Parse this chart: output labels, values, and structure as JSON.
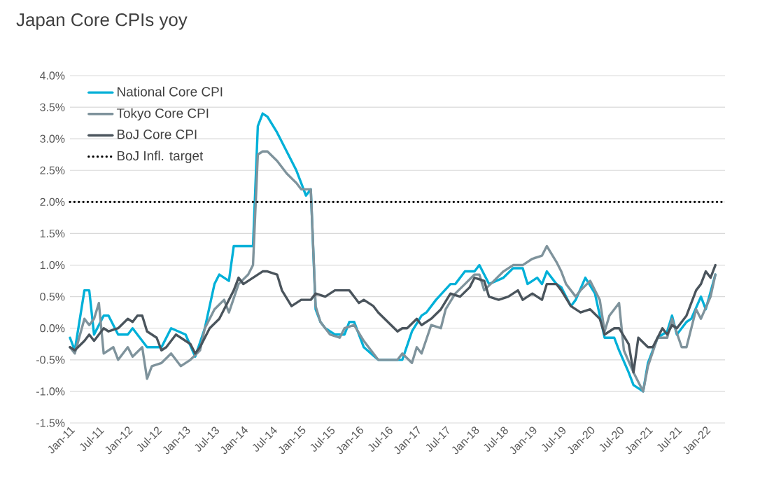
{
  "chart_data": {
    "type": "line",
    "title": "Japan Core CPIs yoy",
    "xlim": [
      "2011-01",
      "2022-05"
    ],
    "xticks": [
      {
        "value": "2011-01",
        "label": "Jan-11"
      },
      {
        "value": "2011-07",
        "label": "Jul-11"
      },
      {
        "value": "2012-01",
        "label": "Jan-12"
      },
      {
        "value": "2012-07",
        "label": "Jul-12"
      },
      {
        "value": "2013-01",
        "label": "Jan-13"
      },
      {
        "value": "2013-07",
        "label": "Jul-13"
      },
      {
        "value": "2014-01",
        "label": "Jan-14"
      },
      {
        "value": "2014-07",
        "label": "Jul-14"
      },
      {
        "value": "2015-01",
        "label": "Jan-15"
      },
      {
        "value": "2015-07",
        "label": "Jul-15"
      },
      {
        "value": "2016-01",
        "label": "Jan-16"
      },
      {
        "value": "2016-07",
        "label": "Jul-16"
      },
      {
        "value": "2017-01",
        "label": "Jan-17"
      },
      {
        "value": "2017-07",
        "label": "Jul-17"
      },
      {
        "value": "2018-01",
        "label": "Jan-18"
      },
      {
        "value": "2018-07",
        "label": "Jul-18"
      },
      {
        "value": "2019-01",
        "label": "Jan-19"
      },
      {
        "value": "2019-07",
        "label": "Jul-19"
      },
      {
        "value": "2020-01",
        "label": "Jan-20"
      },
      {
        "value": "2020-07",
        "label": "Jul-20"
      },
      {
        "value": "2021-01",
        "label": "Jan-21"
      },
      {
        "value": "2021-07",
        "label": "Jul-21"
      },
      {
        "value": "2022-01",
        "label": "Jan-22"
      }
    ],
    "ylim": [
      -1.5,
      4.0
    ],
    "yticks": [
      {
        "value": -1.5,
        "label": "-1.5%"
      },
      {
        "value": -1.0,
        "label": "-1.0%"
      },
      {
        "value": -0.5,
        "label": "-0.5%"
      },
      {
        "value": 0,
        "label": "0.0%"
      },
      {
        "value": 0.5,
        "label": "0.5%"
      },
      {
        "value": 1.0,
        "label": "1.0%"
      },
      {
        "value": 1.5,
        "label": "1.5%"
      },
      {
        "value": 2.0,
        "label": "2.0%"
      },
      {
        "value": 2.5,
        "label": "2.5%"
      },
      {
        "value": 3.0,
        "label": "3.0%"
      },
      {
        "value": 3.5,
        "label": "3.5%"
      },
      {
        "value": 4.0,
        "label": "4.0%"
      }
    ],
    "grid": "y",
    "legend": "top left",
    "marker": "none",
    "line_style": "solid",
    "ref_lines": [
      {
        "axis": "y",
        "value": 2.0,
        "label": "BoJ Infl. target",
        "color": "#000000",
        "line_style": "dotted"
      }
    ],
    "series": [
      {
        "name": "National Core CPI",
        "color": "#00b0d8",
        "x": [
          "2011-01",
          "2011-02",
          "2011-04",
          "2011-05",
          "2011-06",
          "2011-08",
          "2011-09",
          "2011-11",
          "2012-01",
          "2012-02",
          "2012-05",
          "2012-08",
          "2012-10",
          "2013-01",
          "2013-03",
          "2013-05",
          "2013-07",
          "2013-08",
          "2013-10",
          "2013-11",
          "2013-12",
          "2014-03",
          "2014-04",
          "2014-05",
          "2014-06",
          "2014-08",
          "2014-10",
          "2014-12",
          "2015-02",
          "2015-03",
          "2015-04",
          "2015-05",
          "2015-06",
          "2015-08",
          "2015-10",
          "2015-11",
          "2015-12",
          "2016-02",
          "2016-05",
          "2016-08",
          "2016-10",
          "2016-12",
          "2017-02",
          "2017-03",
          "2017-05",
          "2017-08",
          "2017-09",
          "2017-11",
          "2018-01",
          "2018-02",
          "2018-03",
          "2018-04",
          "2018-07",
          "2018-09",
          "2018-11",
          "2018-12",
          "2019-02",
          "2019-03",
          "2019-04",
          "2019-06",
          "2019-07",
          "2019-09",
          "2019-10",
          "2019-12",
          "2020-02",
          "2020-04",
          "2020-06",
          "2020-07",
          "2020-09",
          "2020-10",
          "2020-12",
          "2021-01",
          "2021-03",
          "2021-05",
          "2021-06",
          "2021-07",
          "2021-09",
          "2021-10",
          "2021-12",
          "2022-01",
          "2022-03"
        ],
        "values": [
          -0.15,
          -0.35,
          0.6,
          0.6,
          -0.1,
          0.2,
          0.2,
          -0.1,
          -0.1,
          0,
          -0.3,
          -0.3,
          0,
          -0.1,
          -0.45,
          0,
          0.7,
          0.85,
          0.75,
          1.3,
          1.3,
          1.3,
          3.2,
          3.4,
          3.35,
          3.1,
          2.8,
          2.5,
          2.1,
          2.2,
          0.3,
          0.1,
          0,
          -0.1,
          -0.1,
          0.1,
          0.1,
          -0.3,
          -0.5,
          -0.5,
          -0.5,
          -0.05,
          0.2,
          0.25,
          0.45,
          0.7,
          0.7,
          0.9,
          0.9,
          1.0,
          0.85,
          0.7,
          0.8,
          0.95,
          0.95,
          0.7,
          0.8,
          0.7,
          0.9,
          0.7,
          0.65,
          0.35,
          0.45,
          0.8,
          0.55,
          -0.15,
          -0.15,
          -0.35,
          -0.7,
          -0.9,
          -1.0,
          -0.55,
          -0.15,
          -0.05,
          0.2,
          -0.1,
          0.1,
          0.15,
          0.5,
          0.3,
          0.85
        ]
      },
      {
        "name": "Tokyo Core CPI",
        "color": "#7f939c",
        "x": [
          "2011-01",
          "2011-02",
          "2011-04",
          "2011-05",
          "2011-06",
          "2011-07",
          "2011-08",
          "2011-10",
          "2011-11",
          "2012-01",
          "2012-02",
          "2012-04",
          "2012-05",
          "2012-06",
          "2012-08",
          "2012-10",
          "2012-12",
          "2013-02",
          "2013-04",
          "2013-05",
          "2013-07",
          "2013-09",
          "2013-10",
          "2013-12",
          "2014-02",
          "2014-03",
          "2014-04",
          "2014-05",
          "2014-06",
          "2014-08",
          "2014-10",
          "2014-12",
          "2015-01",
          "2015-03",
          "2015-04",
          "2015-05",
          "2015-07",
          "2015-09",
          "2015-10",
          "2015-12",
          "2016-02",
          "2016-05",
          "2016-08",
          "2016-09",
          "2016-10",
          "2016-12",
          "2017-01",
          "2017-02",
          "2017-04",
          "2017-06",
          "2017-07",
          "2017-09",
          "2017-11",
          "2018-01",
          "2018-02",
          "2018-03",
          "2018-05",
          "2018-07",
          "2018-09",
          "2018-11",
          "2019-01",
          "2019-03",
          "2019-04",
          "2019-06",
          "2019-07",
          "2019-08",
          "2019-10",
          "2019-11",
          "2020-01",
          "2020-03",
          "2020-04",
          "2020-05",
          "2020-07",
          "2020-08",
          "2020-10",
          "2020-12",
          "2021-01",
          "2021-03",
          "2021-05",
          "2021-06",
          "2021-08",
          "2021-09",
          "2021-11",
          "2021-12",
          "2022-02",
          "2022-03"
        ],
        "values": [
          -0.3,
          -0.4,
          0.15,
          0.05,
          0.15,
          0.4,
          -0.4,
          -0.3,
          -0.5,
          -0.3,
          -0.45,
          -0.3,
          -0.8,
          -0.6,
          -0.55,
          -0.4,
          -0.6,
          -0.5,
          -0.35,
          0,
          0.3,
          0.45,
          0.25,
          0.7,
          0.85,
          1.0,
          2.75,
          2.8,
          2.8,
          2.65,
          2.45,
          2.3,
          2.2,
          2.2,
          0.35,
          0.1,
          -0.1,
          -0.15,
          0,
          0.05,
          -0.2,
          -0.5,
          -0.5,
          -0.5,
          -0.4,
          -0.55,
          -0.3,
          -0.4,
          0.05,
          0,
          0.3,
          0.55,
          0.7,
          0.85,
          0.85,
          0.6,
          0.75,
          0.9,
          1.0,
          1.0,
          1.1,
          1.15,
          1.3,
          1.05,
          0.9,
          0.7,
          0.5,
          0.6,
          0.75,
          0.45,
          -0.05,
          0.2,
          0.4,
          -0.35,
          -0.7,
          -1.0,
          -0.6,
          -0.15,
          -0.15,
          0.15,
          -0.3,
          -0.3,
          0.3,
          0.15,
          0.5,
          0.85
        ]
      },
      {
        "name": "BoJ Core CPI",
        "color": "#4a545c",
        "x": [
          "2011-01",
          "2011-02",
          "2011-04",
          "2011-05",
          "2011-06",
          "2011-08",
          "2011-09",
          "2011-11",
          "2012-01",
          "2012-02",
          "2012-03",
          "2012-04",
          "2012-05",
          "2012-07",
          "2012-08",
          "2012-09",
          "2012-11",
          "2012-12",
          "2013-02",
          "2013-03",
          "2013-04",
          "2013-06",
          "2013-08",
          "2013-09",
          "2013-11",
          "2013-12",
          "2014-01",
          "2014-03",
          "2014-05",
          "2014-06",
          "2014-08",
          "2014-09",
          "2014-11",
          "2015-01",
          "2015-03",
          "2015-04",
          "2015-06",
          "2015-08",
          "2015-09",
          "2015-11",
          "2016-01",
          "2016-02",
          "2016-04",
          "2016-05",
          "2016-07",
          "2016-09",
          "2016-10",
          "2016-11",
          "2017-01",
          "2017-02",
          "2017-04",
          "2017-06",
          "2017-08",
          "2017-10",
          "2017-12",
          "2018-01",
          "2018-03",
          "2018-04",
          "2018-06",
          "2018-08",
          "2018-10",
          "2018-11",
          "2019-01",
          "2019-03",
          "2019-04",
          "2019-06",
          "2019-07",
          "2019-09",
          "2019-11",
          "2020-01",
          "2020-03",
          "2020-04",
          "2020-06",
          "2020-07",
          "2020-09",
          "2020-10",
          "2020-11",
          "2021-01",
          "2021-02",
          "2021-04",
          "2021-05",
          "2021-06",
          "2021-07",
          "2021-09",
          "2021-11",
          "2021-12",
          "2022-01",
          "2022-02",
          "2022-03"
        ],
        "values": [
          -0.3,
          -0.35,
          -0.2,
          -0.1,
          -0.2,
          0,
          -0.05,
          0,
          0.15,
          0.1,
          0.2,
          0.2,
          -0.05,
          -0.15,
          -0.35,
          -0.3,
          -0.1,
          -0.15,
          -0.25,
          -0.4,
          -0.3,
          0,
          0.15,
          0.3,
          0.6,
          0.8,
          0.7,
          0.8,
          0.9,
          0.9,
          0.85,
          0.6,
          0.35,
          0.45,
          0.45,
          0.55,
          0.5,
          0.6,
          0.6,
          0.6,
          0.4,
          0.45,
          0.35,
          0.25,
          0.1,
          -0.05,
          0,
          0,
          0.15,
          0.05,
          0.15,
          0.3,
          0.55,
          0.5,
          0.65,
          0.8,
          0.75,
          0.5,
          0.45,
          0.5,
          0.6,
          0.45,
          0.55,
          0.45,
          0.7,
          0.7,
          0.6,
          0.35,
          0.25,
          0.3,
          0.15,
          -0.1,
          0,
          0,
          -0.25,
          -0.7,
          -0.15,
          -0.3,
          -0.3,
          0,
          -0.1,
          0.05,
          0,
          0.2,
          0.6,
          0.7,
          0.9,
          0.8,
          1.0
        ]
      }
    ]
  }
}
